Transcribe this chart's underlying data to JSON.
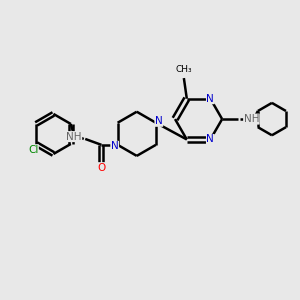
{
  "background_color": "#e8e8e8",
  "bond_color": "#000000",
  "n_color": "#0000cc",
  "o_color": "#ff0000",
  "cl_color": "#008800",
  "h_color": "#666666",
  "line_width": 1.8,
  "figsize": [
    3.0,
    3.0
  ],
  "dpi": 100,
  "xlim": [
    0,
    10
  ],
  "ylim": [
    0,
    10
  ]
}
